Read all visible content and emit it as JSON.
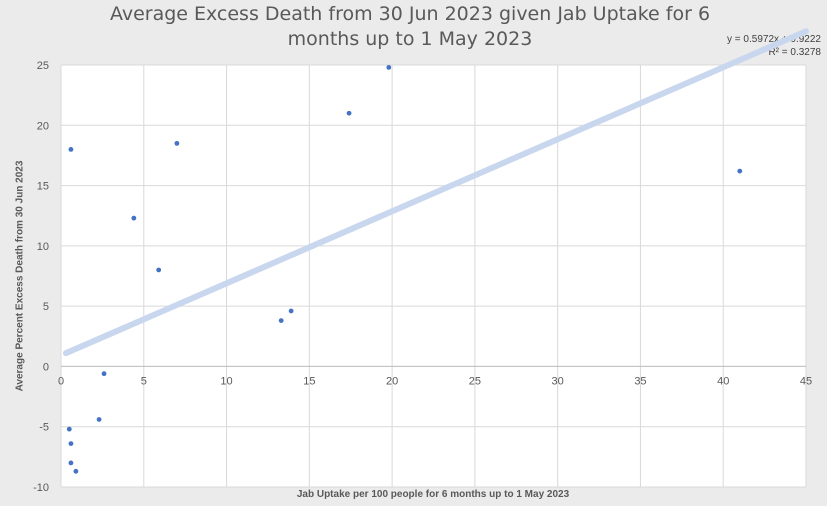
{
  "chart_data": {
    "type": "scatter",
    "title": "Average Excess Death from 30 Jun 2023 given Jab Uptake for 6 months up to 1 May 2023",
    "title_lines": [
      "Average Excess Death from 30 Jun 2023 given Jab Uptake for 6",
      "months up to 1 May 2023"
    ],
    "xlabel": "Jab Uptake per 100 people for 6 months up to 1 May 2023",
    "ylabel": "Average Percent Excess Death from 30 Jun 2023",
    "xlim": [
      0,
      45
    ],
    "ylim": [
      -10,
      25
    ],
    "xticks": [
      0,
      5,
      10,
      15,
      20,
      25,
      30,
      35,
      40,
      45
    ],
    "yticks": [
      -10,
      -5,
      0,
      5,
      10,
      15,
      20,
      25
    ],
    "grid": true,
    "marker_color": "#4472c4",
    "trendline_color": "#c9d7ee",
    "trendline": {
      "type": "linear",
      "slope": 0.5972,
      "intercept": 0.9222,
      "x_range": [
        0.3,
        45
      ],
      "equation": "y = 0.5972x + 0.9222",
      "r_squared": "R² = 0.3278"
    },
    "points": [
      {
        "x": 0.6,
        "y": -8.0
      },
      {
        "x": 0.5,
        "y": -5.2
      },
      {
        "x": 0.6,
        "y": -6.4
      },
      {
        "x": 0.9,
        "y": -8.7
      },
      {
        "x": 0.6,
        "y": 18.0
      },
      {
        "x": 2.3,
        "y": -4.4
      },
      {
        "x": 2.6,
        "y": -0.6
      },
      {
        "x": 4.4,
        "y": 12.3
      },
      {
        "x": 5.9,
        "y": 8.0
      },
      {
        "x": 7.0,
        "y": 18.5
      },
      {
        "x": 13.3,
        "y": 3.8
      },
      {
        "x": 13.9,
        "y": 4.6
      },
      {
        "x": 17.4,
        "y": 21.0
      },
      {
        "x": 19.8,
        "y": 24.8
      },
      {
        "x": 41.0,
        "y": 16.2
      }
    ]
  }
}
